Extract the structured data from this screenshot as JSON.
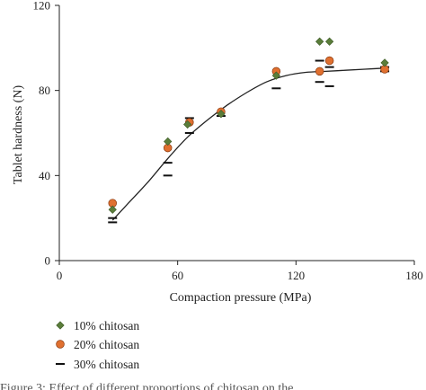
{
  "chart_data": {
    "type": "scatter",
    "xlabel": "Compaction pressure (MPa)",
    "ylabel": "Tablet hardness (N)",
    "xlim": [
      0,
      180
    ],
    "ylim": [
      0,
      120
    ],
    "x_ticks": [
      "0",
      "60",
      "120",
      "180"
    ],
    "y_ticks": [
      "0",
      "40",
      "80",
      "120"
    ],
    "grid": false,
    "legend_placement": "bottom-left, below axes",
    "series": [
      {
        "name": "10% chitosan",
        "marker": "diamond",
        "color": "#5a7d3a",
        "points": [
          [
            27,
            24
          ],
          [
            55,
            56
          ],
          [
            65,
            64
          ],
          [
            82,
            69
          ],
          [
            110,
            87
          ],
          [
            132,
            103
          ],
          [
            137,
            103
          ],
          [
            165,
            93
          ]
        ]
      },
      {
        "name": "20% chitosan",
        "marker": "circle",
        "color": "#e07030",
        "points": [
          [
            27,
            27
          ],
          [
            55,
            53
          ],
          [
            66,
            65
          ],
          [
            82,
            70
          ],
          [
            110,
            89
          ],
          [
            132,
            89
          ],
          [
            137,
            94
          ],
          [
            165,
            90
          ]
        ]
      },
      {
        "name": "30% chitosan",
        "marker": "dash",
        "color": "#111111",
        "points": [
          [
            27,
            20
          ],
          [
            27,
            18
          ],
          [
            55,
            46
          ],
          [
            55,
            40
          ],
          [
            66,
            67
          ],
          [
            66,
            60
          ],
          [
            82,
            68
          ],
          [
            110,
            81
          ],
          [
            132,
            94
          ],
          [
            132,
            84
          ],
          [
            137,
            91
          ],
          [
            137,
            82
          ],
          [
            165,
            91
          ],
          [
            165,
            89
          ]
        ]
      }
    ],
    "fit_curve": {
      "color": "#222222",
      "points": [
        [
          27,
          19
        ],
        [
          35,
          27
        ],
        [
          45,
          37
        ],
        [
          55,
          48
        ],
        [
          65,
          58
        ],
        [
          75,
          66
        ],
        [
          85,
          73
        ],
        [
          95,
          79
        ],
        [
          105,
          84
        ],
        [
          115,
          87
        ],
        [
          125,
          88.5
        ],
        [
          135,
          89
        ],
        [
          145,
          89.5
        ],
        [
          155,
          90
        ],
        [
          165,
          90.5
        ]
      ]
    }
  },
  "caption_fragment": "Figure 3: Effect of different proportions of chitosan on the"
}
